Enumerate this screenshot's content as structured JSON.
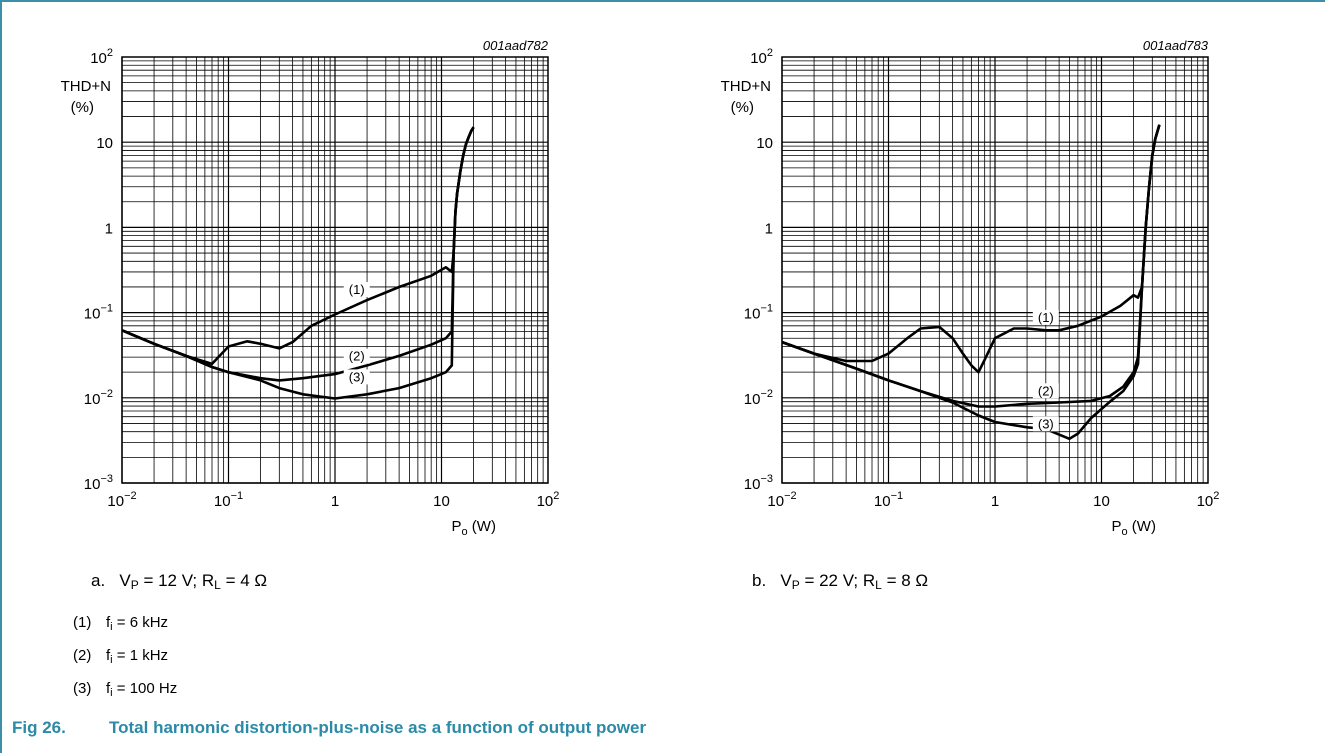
{
  "figure": {
    "label": "Fig 26.",
    "title": "Total harmonic distortion-plus-noise as a function of output power"
  },
  "notes": [
    {
      "num": "(1)",
      "f": "f",
      "sub": "i",
      "text": " = 6 kHz"
    },
    {
      "num": "(2)",
      "f": "f",
      "sub": "i",
      "text": " = 1 kHz"
    },
    {
      "num": "(3)",
      "f": "f",
      "sub": "i",
      "text": " = 100 Hz"
    }
  ],
  "captions": [
    {
      "letter": "a.",
      "v": "V",
      "vsub": "P",
      "vtext": " = 12 V; R",
      "rsub": "L",
      "rtext": " = 4 Ω"
    },
    {
      "letter": "b.",
      "v": "V",
      "vsub": "P",
      "vtext": " = 22 V; R",
      "rsub": "L",
      "rtext": " = 8 Ω"
    }
  ],
  "colors": {
    "accent": "#2b8aa6",
    "border": "#3b8fa6",
    "grid": "#000000",
    "curve": "#000000"
  },
  "chart_data": [
    {
      "type": "line",
      "code": "001aad782",
      "ylabel_line1": "THD+N",
      "ylabel_line2": "(%)",
      "xlabel_main": "P",
      "xlabel_sub": "o",
      "xlabel_unit": " (W)",
      "x_scale": "log",
      "y_scale": "log",
      "xlim": [
        0.01,
        100
      ],
      "ylim": [
        0.001,
        100
      ],
      "grid": true,
      "x_ticks": [
        {
          "value": 0.01,
          "base": "10",
          "exp": "−2"
        },
        {
          "value": 0.1,
          "base": "10",
          "exp": "−1"
        },
        {
          "value": 1,
          "base": "1",
          "exp": ""
        },
        {
          "value": 10,
          "base": "10",
          "exp": ""
        },
        {
          "value": 100,
          "base": "10",
          "exp": "2"
        }
      ],
      "y_ticks": [
        {
          "value": 0.001,
          "base": "10",
          "exp": "−3"
        },
        {
          "value": 0.01,
          "base": "10",
          "exp": "−2"
        },
        {
          "value": 0.1,
          "base": "10",
          "exp": "−1"
        },
        {
          "value": 1,
          "base": "1",
          "exp": ""
        },
        {
          "value": 10,
          "base": "10",
          "exp": ""
        },
        {
          "value": 100,
          "base": "10",
          "exp": "2"
        }
      ],
      "series": [
        {
          "name": "(1)",
          "label_at": [
            1.6,
            0.17
          ],
          "x": [
            0.01,
            0.02,
            0.04,
            0.07,
            0.1,
            0.15,
            0.2,
            0.3,
            0.4,
            0.6,
            1,
            2,
            4,
            8,
            11,
            12.5,
            13,
            13.5,
            14,
            15,
            16,
            17,
            18,
            19,
            20
          ],
          "y": [
            0.062,
            0.043,
            0.031,
            0.025,
            0.04,
            0.046,
            0.043,
            0.038,
            0.045,
            0.07,
            0.095,
            0.14,
            0.2,
            0.27,
            0.34,
            0.3,
            0.5,
            1.5,
            2.5,
            4.5,
            7,
            9.5,
            11.5,
            13.5,
            15
          ]
        },
        {
          "name": "(2)",
          "label_at": [
            1.6,
            0.028
          ],
          "x": [
            0.01,
            0.02,
            0.04,
            0.07,
            0.1,
            0.2,
            0.3,
            0.5,
            1,
            2,
            4,
            8,
            11,
            12.5,
            13,
            13.5,
            14,
            15,
            16,
            17,
            18,
            19,
            20
          ],
          "y": [
            0.062,
            0.043,
            0.031,
            0.023,
            0.02,
            0.017,
            0.016,
            0.017,
            0.019,
            0.024,
            0.031,
            0.042,
            0.05,
            0.06,
            0.5,
            1.5,
            2.5,
            4.5,
            7,
            9.5,
            11.5,
            13.5,
            15
          ]
        },
        {
          "name": "(3)",
          "label_at": [
            1.6,
            0.016
          ],
          "x": [
            0.01,
            0.02,
            0.04,
            0.07,
            0.1,
            0.2,
            0.3,
            0.5,
            1,
            2,
            4,
            8,
            11,
            12.5,
            13,
            13.5,
            14,
            15,
            16,
            17,
            18,
            19,
            20
          ],
          "y": [
            0.062,
            0.043,
            0.031,
            0.023,
            0.02,
            0.016,
            0.013,
            0.011,
            0.0098,
            0.011,
            0.013,
            0.017,
            0.02,
            0.024,
            0.5,
            1.5,
            2.5,
            4.5,
            7,
            9.5,
            11.5,
            13.5,
            15
          ]
        }
      ]
    },
    {
      "type": "line",
      "code": "001aad783",
      "ylabel_line1": "THD+N",
      "ylabel_line2": "(%)",
      "xlabel_main": "P",
      "xlabel_sub": "o",
      "xlabel_unit": " (W)",
      "x_scale": "log",
      "y_scale": "log",
      "xlim": [
        0.01,
        100
      ],
      "ylim": [
        0.001,
        100
      ],
      "grid": true,
      "x_ticks": [
        {
          "value": 0.01,
          "base": "10",
          "exp": "−2"
        },
        {
          "value": 0.1,
          "base": "10",
          "exp": "−1"
        },
        {
          "value": 1,
          "base": "1",
          "exp": ""
        },
        {
          "value": 10,
          "base": "10",
          "exp": ""
        },
        {
          "value": 100,
          "base": "10",
          "exp": "2"
        }
      ],
      "y_ticks": [
        {
          "value": 0.001,
          "base": "10",
          "exp": "−3"
        },
        {
          "value": 0.01,
          "base": "10",
          "exp": "−2"
        },
        {
          "value": 0.1,
          "base": "10",
          "exp": "−1"
        },
        {
          "value": 1,
          "base": "1",
          "exp": ""
        },
        {
          "value": 10,
          "base": "10",
          "exp": ""
        },
        {
          "value": 100,
          "base": "10",
          "exp": "2"
        }
      ],
      "series": [
        {
          "name": "(1)",
          "label_at": [
            3,
            0.08
          ],
          "x": [
            0.01,
            0.02,
            0.04,
            0.07,
            0.1,
            0.15,
            0.2,
            0.3,
            0.4,
            0.5,
            0.6,
            0.7,
            0.8,
            1,
            1.5,
            2,
            3,
            4,
            6,
            10,
            15,
            20,
            22,
            24,
            26,
            28,
            30,
            32,
            35
          ],
          "y": [
            0.045,
            0.033,
            0.027,
            0.027,
            0.033,
            0.05,
            0.065,
            0.068,
            0.05,
            0.033,
            0.024,
            0.02,
            0.028,
            0.05,
            0.065,
            0.065,
            0.062,
            0.062,
            0.07,
            0.09,
            0.12,
            0.16,
            0.15,
            0.2,
            1,
            3,
            7,
            11,
            16
          ]
        },
        {
          "name": "(2)",
          "label_at": [
            3,
            0.011
          ],
          "x": [
            0.01,
            0.02,
            0.05,
            0.1,
            0.2,
            0.4,
            0.7,
            1,
            2,
            4,
            8,
            12,
            16,
            20,
            22,
            24,
            26,
            28,
            30,
            32,
            35
          ],
          "y": [
            0.045,
            0.033,
            0.022,
            0.016,
            0.012,
            0.0092,
            0.0079,
            0.0079,
            0.0085,
            0.0088,
            0.0092,
            0.0105,
            0.0135,
            0.02,
            0.03,
            0.2,
            1,
            3,
            7,
            11,
            16
          ]
        },
        {
          "name": "(3)",
          "label_at": [
            3,
            0.0045
          ],
          "x": [
            0.01,
            0.02,
            0.05,
            0.1,
            0.2,
            0.4,
            0.7,
            1,
            2,
            3,
            4,
            5,
            6,
            8,
            12,
            16,
            20,
            22,
            24,
            26,
            28,
            30,
            32,
            35
          ],
          "y": [
            0.045,
            0.033,
            0.022,
            0.016,
            0.012,
            0.0088,
            0.0062,
            0.0052,
            0.0045,
            0.0043,
            0.0037,
            0.0033,
            0.0038,
            0.0058,
            0.009,
            0.012,
            0.018,
            0.025,
            0.2,
            1,
            3,
            7,
            11,
            16
          ]
        }
      ]
    }
  ]
}
